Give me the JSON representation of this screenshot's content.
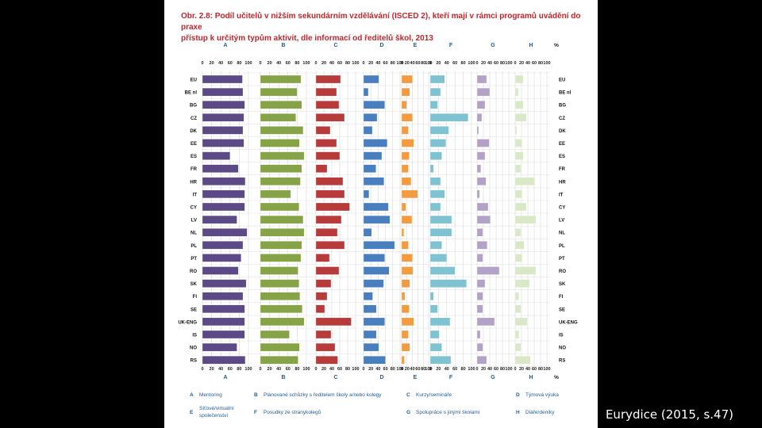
{
  "caption": "Eurydice (2015, s.47)",
  "chart_data": {
    "type": "bar",
    "title_line1": "Obr. 2.8: Podíl učitelů v nižším sekundárním vzdělávání (ISCED 2), kteří mají v rámci programů uvádění do praxe",
    "title_line2": "přístup k určitým typům aktivit, dle informací od ředitelů škol, 2013",
    "unit": "%",
    "xlim": [
      0,
      100
    ],
    "ticks": [
      "0",
      "20",
      "40",
      "60",
      "80",
      "100"
    ],
    "categories": [
      "EU",
      "BE nl",
      "BG",
      "CZ",
      "DK",
      "EE",
      "ES",
      "FR",
      "HR",
      "IT",
      "CY",
      "LV",
      "NL",
      "PL",
      "PT",
      "RO",
      "SK",
      "FI",
      "SE",
      "UK-ENG",
      "IS",
      "NO",
      "RS"
    ],
    "series": [
      {
        "key": "A",
        "color": "#5b4a86",
        "values": [
          87,
          88,
          92,
          90,
          88,
          90,
          60,
          78,
          93,
          92,
          92,
          75,
          97,
          88,
          84,
          78,
          95,
          88,
          92,
          92,
          92,
          75,
          93
        ]
      },
      {
        "key": "B",
        "color": "#86a447",
        "values": [
          88,
          80,
          90,
          77,
          93,
          85,
          95,
          90,
          87,
          66,
          84,
          93,
          95,
          90,
          88,
          82,
          84,
          86,
          91,
          95,
          63,
          85,
          82
        ]
      },
      {
        "key": "C",
        "color": "#b83b3b",
        "values": [
          62,
          52,
          58,
          72,
          36,
          52,
          60,
          28,
          68,
          72,
          85,
          64,
          54,
          72,
          34,
          58,
          38,
          28,
          22,
          89,
          38,
          48,
          55
        ]
      },
      {
        "key": "D",
        "color": "#4a7fbf",
        "values": [
          42,
          13,
          58,
          37,
          24,
          65,
          50,
          34,
          56,
          15,
          68,
          72,
          22,
          85,
          58,
          70,
          55,
          25,
          35,
          58,
          35,
          42,
          60
        ]
      },
      {
        "key": "E",
        "color": "#f29b41",
        "values": [
          40,
          30,
          18,
          40,
          25,
          45,
          28,
          25,
          35,
          60,
          15,
          38,
          8,
          25,
          40,
          42,
          30,
          12,
          28,
          45,
          25,
          30,
          10
        ]
      },
      {
        "key": "F",
        "color": "#7fc3d3",
        "values": [
          35,
          25,
          18,
          92,
          45,
          38,
          28,
          8,
          25,
          35,
          25,
          52,
          52,
          28,
          40,
          60,
          88,
          8,
          18,
          48,
          22,
          28,
          50
        ]
      },
      {
        "key": "G",
        "color": "#b3a2c7",
        "values": [
          30,
          40,
          25,
          15,
          5,
          38,
          25,
          12,
          28,
          8,
          35,
          42,
          18,
          32,
          18,
          70,
          25,
          18,
          18,
          55,
          10,
          18,
          30
        ]
      },
      {
        "key": "H",
        "color": "#d9e8c6",
        "values": [
          25,
          10,
          25,
          35,
          5,
          22,
          25,
          18,
          62,
          22,
          35,
          65,
          18,
          28,
          22,
          65,
          45,
          12,
          18,
          38,
          12,
          18,
          48
        ]
      }
    ],
    "legend": [
      {
        "key": "A",
        "label": "Mentoring"
      },
      {
        "key": "B",
        "label": "Plánované schůzky s ředitelem školy a/nebo kolegy"
      },
      {
        "key": "C",
        "label": "Kurzy/semináře"
      },
      {
        "key": "D",
        "label": "Týmová výuka"
      },
      {
        "key": "E",
        "label1": "Síťové/virtuální",
        "label2": "společenství"
      },
      {
        "key": "F",
        "label": "Posudky ze stranykolegů"
      },
      {
        "key": "G",
        "label": "Spolupráce s jinými školami"
      },
      {
        "key": "H",
        "label": "Diáře/deníky"
      }
    ]
  }
}
